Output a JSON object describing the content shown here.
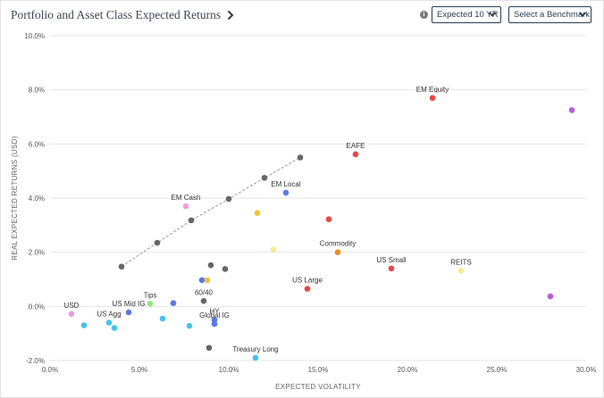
{
  "header": {
    "title": "Portfolio and Asset Class Expected Returns",
    "horizon_select": "Expected 10 YR",
    "benchmark_select": "Select a Benchmark"
  },
  "chart_data": {
    "type": "scatter",
    "xlabel": "EXPECTED VOLATILITY",
    "ylabel": "REAL EXPECTED RETURNS (USD)",
    "xlim": [
      0,
      30
    ],
    "ylim": [
      -2,
      10
    ],
    "xticks": [
      0,
      5,
      10,
      15,
      20,
      25,
      30
    ],
    "yticks": [
      -2,
      0,
      2,
      4,
      6,
      8,
      10
    ],
    "xtick_labels": [
      "0.0%",
      "5.0%",
      "10.0%",
      "15.0%",
      "20.0%",
      "25.0%",
      "30.0%"
    ],
    "ytick_labels": [
      "-2.0%",
      "0.0%",
      "2.0%",
      "4.0%",
      "6.0%",
      "8.0%",
      "10.0%"
    ],
    "grid": true,
    "frontier": {
      "color": "#666666",
      "points": [
        [
          4.0,
          1.47
        ],
        [
          6.0,
          2.35
        ],
        [
          7.9,
          3.18
        ],
        [
          10.0,
          3.97
        ],
        [
          12.0,
          4.75
        ],
        [
          14.0,
          5.5
        ]
      ]
    },
    "points": [
      {
        "x": 21.4,
        "y": 7.7,
        "label": "EM Equity",
        "color": "#e84848"
      },
      {
        "x": 29.2,
        "y": 7.25,
        "label": "",
        "color": "#b55fd8"
      },
      {
        "x": 17.1,
        "y": 5.62,
        "label": "EAFE",
        "color": "#e84848"
      },
      {
        "x": 13.2,
        "y": 4.2,
        "label": "EM Local",
        "color": "#5a78e6"
      },
      {
        "x": 7.6,
        "y": 3.7,
        "label": "EM Cash",
        "color": "#f09ae8"
      },
      {
        "x": 11.6,
        "y": 3.45,
        "label": "",
        "color": "#f2c12e"
      },
      {
        "x": 15.6,
        "y": 3.22,
        "label": "",
        "color": "#e84848"
      },
      {
        "x": 12.5,
        "y": 2.1,
        "label": "",
        "color": "#f4ed8c"
      },
      {
        "x": 16.1,
        "y": 2.0,
        "label": "Commodity",
        "color": "#f08c22"
      },
      {
        "x": 19.1,
        "y": 1.4,
        "label": "US Small",
        "color": "#e84848"
      },
      {
        "x": 23.0,
        "y": 1.32,
        "label": "REITS",
        "color": "#f4ed8c"
      },
      {
        "x": 28.0,
        "y": 0.37,
        "label": "",
        "color": "#b55fd8"
      },
      {
        "x": 14.4,
        "y": 0.65,
        "label": "US Large",
        "color": "#e84848"
      },
      {
        "x": 9.0,
        "y": 1.52,
        "label": "",
        "color": "#666666"
      },
      {
        "x": 9.8,
        "y": 1.38,
        "label": "",
        "color": "#666666"
      },
      {
        "x": 8.5,
        "y": 0.97,
        "label": "",
        "color": "#5a78e6"
      },
      {
        "x": 8.8,
        "y": 0.97,
        "label": "",
        "color": "#f2c12e"
      },
      {
        "x": 8.6,
        "y": 0.2,
        "label": "60/40",
        "color": "#666666"
      },
      {
        "x": 5.6,
        "y": 0.1,
        "label": "Tips",
        "color": "#90e480"
      },
      {
        "x": 6.9,
        "y": 0.12,
        "label": "",
        "color": "#5a78e6"
      },
      {
        "x": 4.4,
        "y": -0.22,
        "label": "US Mid IG",
        "color": "#5a78e6"
      },
      {
        "x": 1.2,
        "y": -0.28,
        "label": "USD",
        "color": "#f09ae8"
      },
      {
        "x": 1.9,
        "y": -0.7,
        "label": "",
        "color": "#44c3ec"
      },
      {
        "x": 3.3,
        "y": -0.6,
        "label": "US Agg",
        "color": "#44c3ec"
      },
      {
        "x": 3.6,
        "y": -0.8,
        "label": "",
        "color": "#44c3ec"
      },
      {
        "x": 6.3,
        "y": -0.45,
        "label": "",
        "color": "#44c3ec"
      },
      {
        "x": 7.8,
        "y": -0.72,
        "label": "",
        "color": "#44c3ec"
      },
      {
        "x": 9.2,
        "y": -0.5,
        "label": "HY",
        "color": "#5a78e6"
      },
      {
        "x": 9.2,
        "y": -0.65,
        "label": "Global IG",
        "color": "#5a78e6"
      },
      {
        "x": 8.9,
        "y": -1.53,
        "label": "",
        "color": "#666666"
      },
      {
        "x": 11.5,
        "y": -1.9,
        "label": "Treasury Long",
        "color": "#44c3ec"
      }
    ]
  }
}
